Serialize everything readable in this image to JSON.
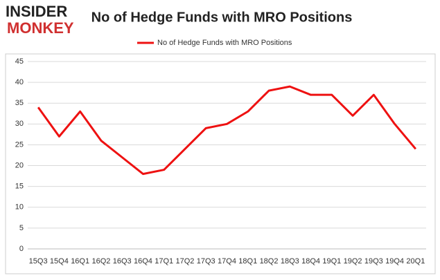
{
  "logo": {
    "line1": "INSIDER",
    "line2": "MONKEY"
  },
  "chart_data": {
    "type": "line",
    "title": "No of Hedge Funds with MRO Positions",
    "categories": [
      "15Q3",
      "15Q4",
      "16Q1",
      "16Q2",
      "16Q3",
      "16Q4",
      "17Q1",
      "17Q2",
      "17Q3",
      "17Q4",
      "18Q1",
      "18Q2",
      "18Q3",
      "18Q4",
      "19Q1",
      "19Q2",
      "19Q3",
      "19Q4",
      "20Q1"
    ],
    "series": [
      {
        "name": "No of Hedge Funds with MRO Positions",
        "color": "#ee1111",
        "values": [
          34,
          27,
          33,
          26,
          22,
          18,
          19,
          24,
          29,
          30,
          33,
          38,
          39,
          37,
          37,
          32,
          37,
          30,
          24
        ]
      }
    ],
    "ylim": [
      0,
      45
    ],
    "yticks": [
      0,
      5,
      10,
      15,
      20,
      25,
      30,
      35,
      40,
      45
    ],
    "grid": true,
    "legend": "top"
  }
}
